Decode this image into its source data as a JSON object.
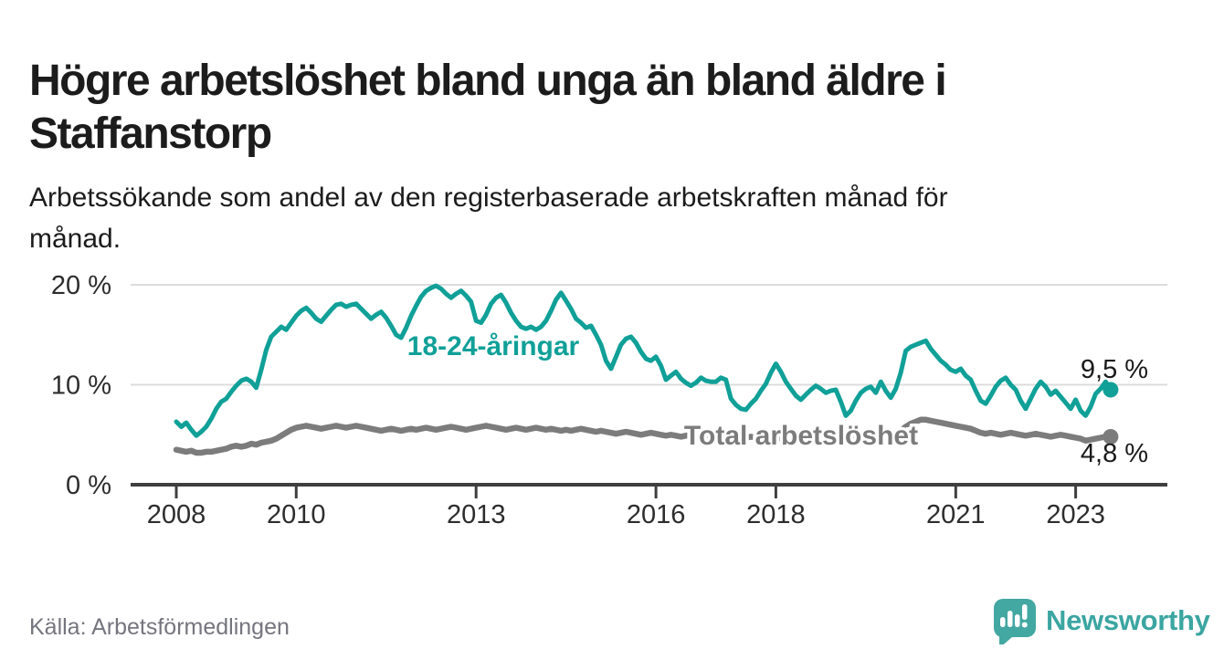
{
  "header": {
    "title": "Högre arbetslöshet bland unga än bland äldre i Staffanstorp",
    "title_lines": [
      "Högre arbetslöshet bland unga än bland äldre i",
      "Staffanstorp"
    ],
    "subtitle": "Arbetssökande som andel av den registerbaserade arbetskraften månad för månad.",
    "subtitle_lines": [
      "Arbetssökande som andel av den registerbaserade arbetskraften månad för",
      "månad."
    ]
  },
  "footer": {
    "source": "Källa: Arbetsförmedlingen",
    "brand": "Newsworthy"
  },
  "colors": {
    "accent_teal": "#10a098",
    "series_gray": "#7c7c7c",
    "axis": "#3f3f3f",
    "grid": "#dcdcdc",
    "text": "#1a1a1a",
    "tick_text": "#2d2d2d",
    "muted_text": "#75757e",
    "logo_teal": "#43a7a2"
  },
  "chart_data": {
    "type": "line",
    "unit": "%",
    "frequency": "monthly",
    "x_start": "2008-01",
    "x_end": "2023-08",
    "grid": "horizontal",
    "legend_position": "inline-labels",
    "ylim": [
      0,
      21
    ],
    "x_tick_years": [
      2008,
      2010,
      2013,
      2016,
      2018,
      2021,
      2023
    ],
    "y_ticks": [
      {
        "label": "0 %",
        "value": 0
      },
      {
        "label": "10 %",
        "value": 10
      },
      {
        "label": "20 %",
        "value": 20
      }
    ],
    "series": [
      {
        "name": "18-24-åringar",
        "color": "#10a098",
        "line_width": 5,
        "end_label": "9,5 %",
        "end_value": 9.5,
        "values": [
          6.3,
          5.8,
          6.2,
          5.5,
          4.9,
          5.3,
          5.8,
          6.6,
          7.6,
          8.3,
          8.6,
          9.3,
          9.9,
          10.4,
          10.6,
          10.3,
          9.7,
          11.5,
          13.5,
          14.8,
          15.3,
          15.8,
          15.5,
          16.2,
          16.9,
          17.4,
          17.7,
          17.2,
          16.6,
          16.3,
          16.9,
          17.5,
          18.0,
          18.1,
          17.8,
          18.0,
          18.1,
          17.6,
          17.1,
          16.6,
          17.0,
          17.3,
          16.7,
          15.9,
          15.0,
          14.7,
          15.7,
          16.9,
          17.9,
          18.8,
          19.4,
          19.7,
          19.9,
          19.6,
          19.1,
          18.7,
          19.1,
          19.4,
          18.9,
          18.3,
          16.4,
          16.2,
          17.0,
          18.1,
          18.7,
          19.0,
          18.2,
          17.2,
          16.4,
          15.8,
          15.6,
          15.8,
          15.5,
          15.8,
          16.4,
          17.4,
          18.5,
          19.2,
          18.4,
          17.6,
          16.6,
          16.2,
          15.7,
          15.9,
          15.0,
          14.0,
          12.4,
          11.6,
          12.8,
          14.0,
          14.6,
          14.8,
          14.2,
          13.3,
          12.6,
          12.4,
          12.8,
          11.9,
          10.5,
          10.9,
          11.3,
          10.6,
          10.2,
          9.9,
          10.2,
          10.7,
          10.4,
          10.3,
          10.3,
          10.7,
          10.5,
          8.6,
          8.0,
          7.6,
          7.5,
          8.1,
          8.6,
          9.4,
          10.1,
          11.2,
          12.1,
          11.3,
          10.3,
          9.6,
          8.9,
          8.5,
          9.0,
          9.5,
          9.9,
          9.6,
          9.2,
          9.4,
          9.5,
          8.3,
          6.9,
          7.4,
          8.4,
          9.2,
          9.6,
          9.8,
          9.2,
          10.3,
          9.4,
          8.7,
          9.6,
          11.2,
          13.4,
          13.8,
          14.0,
          14.2,
          14.4,
          13.6,
          13.0,
          12.4,
          12.0,
          11.5,
          11.3,
          11.6,
          10.9,
          10.5,
          9.4,
          8.4,
          8.1,
          8.9,
          9.8,
          10.4,
          10.7,
          10.0,
          9.5,
          8.4,
          7.6,
          8.6,
          9.6,
          10.3,
          9.8,
          9.0,
          9.4,
          8.8,
          8.2,
          7.6,
          8.5,
          7.4,
          6.9,
          7.8,
          9.1,
          9.6,
          10.3,
          9.5
        ]
      },
      {
        "name": "Total arbetslöshet",
        "color": "#7c7c7c",
        "line_width": 6.5,
        "end_label": "4,8 %",
        "end_value": 4.8,
        "values": [
          3.5,
          3.4,
          3.3,
          3.4,
          3.2,
          3.2,
          3.3,
          3.3,
          3.4,
          3.5,
          3.6,
          3.8,
          3.9,
          3.8,
          3.9,
          4.1,
          4.0,
          4.2,
          4.3,
          4.4,
          4.6,
          4.9,
          5.2,
          5.5,
          5.7,
          5.8,
          5.9,
          5.8,
          5.7,
          5.6,
          5.7,
          5.8,
          5.9,
          5.8,
          5.7,
          5.8,
          5.9,
          5.8,
          5.7,
          5.6,
          5.5,
          5.4,
          5.5,
          5.6,
          5.5,
          5.4,
          5.5,
          5.6,
          5.5,
          5.6,
          5.7,
          5.6,
          5.5,
          5.6,
          5.7,
          5.8,
          5.7,
          5.6,
          5.5,
          5.6,
          5.7,
          5.8,
          5.9,
          5.8,
          5.7,
          5.6,
          5.5,
          5.6,
          5.7,
          5.6,
          5.5,
          5.6,
          5.7,
          5.6,
          5.5,
          5.6,
          5.5,
          5.4,
          5.5,
          5.4,
          5.5,
          5.6,
          5.5,
          5.4,
          5.3,
          5.4,
          5.3,
          5.2,
          5.1,
          5.2,
          5.3,
          5.2,
          5.1,
          5.0,
          5.1,
          5.2,
          5.1,
          5.0,
          4.9,
          5.0,
          4.9,
          4.8,
          4.9,
          5.0,
          4.9,
          4.8,
          4.9,
          5.0,
          4.9,
          4.8,
          4.7,
          4.8,
          4.7,
          4.6,
          4.7,
          4.8,
          4.7,
          4.6,
          4.7,
          4.8,
          4.7,
          4.6,
          4.7,
          4.6,
          4.5,
          4.6,
          4.7,
          4.6,
          4.5,
          4.6,
          4.7,
          4.6,
          4.5,
          4.6,
          4.5,
          4.6,
          4.7,
          4.6,
          4.7,
          4.8,
          4.7,
          4.8,
          4.9,
          5.0,
          5.2,
          5.4,
          5.8,
          6.1,
          6.3,
          6.5,
          6.5,
          6.4,
          6.3,
          6.2,
          6.1,
          6.0,
          5.9,
          5.8,
          5.7,
          5.6,
          5.4,
          5.2,
          5.1,
          5.2,
          5.1,
          5.0,
          5.1,
          5.2,
          5.1,
          5.0,
          4.9,
          5.0,
          5.1,
          5.0,
          4.9,
          4.8,
          4.9,
          5.0,
          4.9,
          4.8,
          4.7,
          4.6,
          4.4,
          4.5,
          4.6,
          4.7,
          4.8,
          4.8
        ]
      }
    ]
  }
}
